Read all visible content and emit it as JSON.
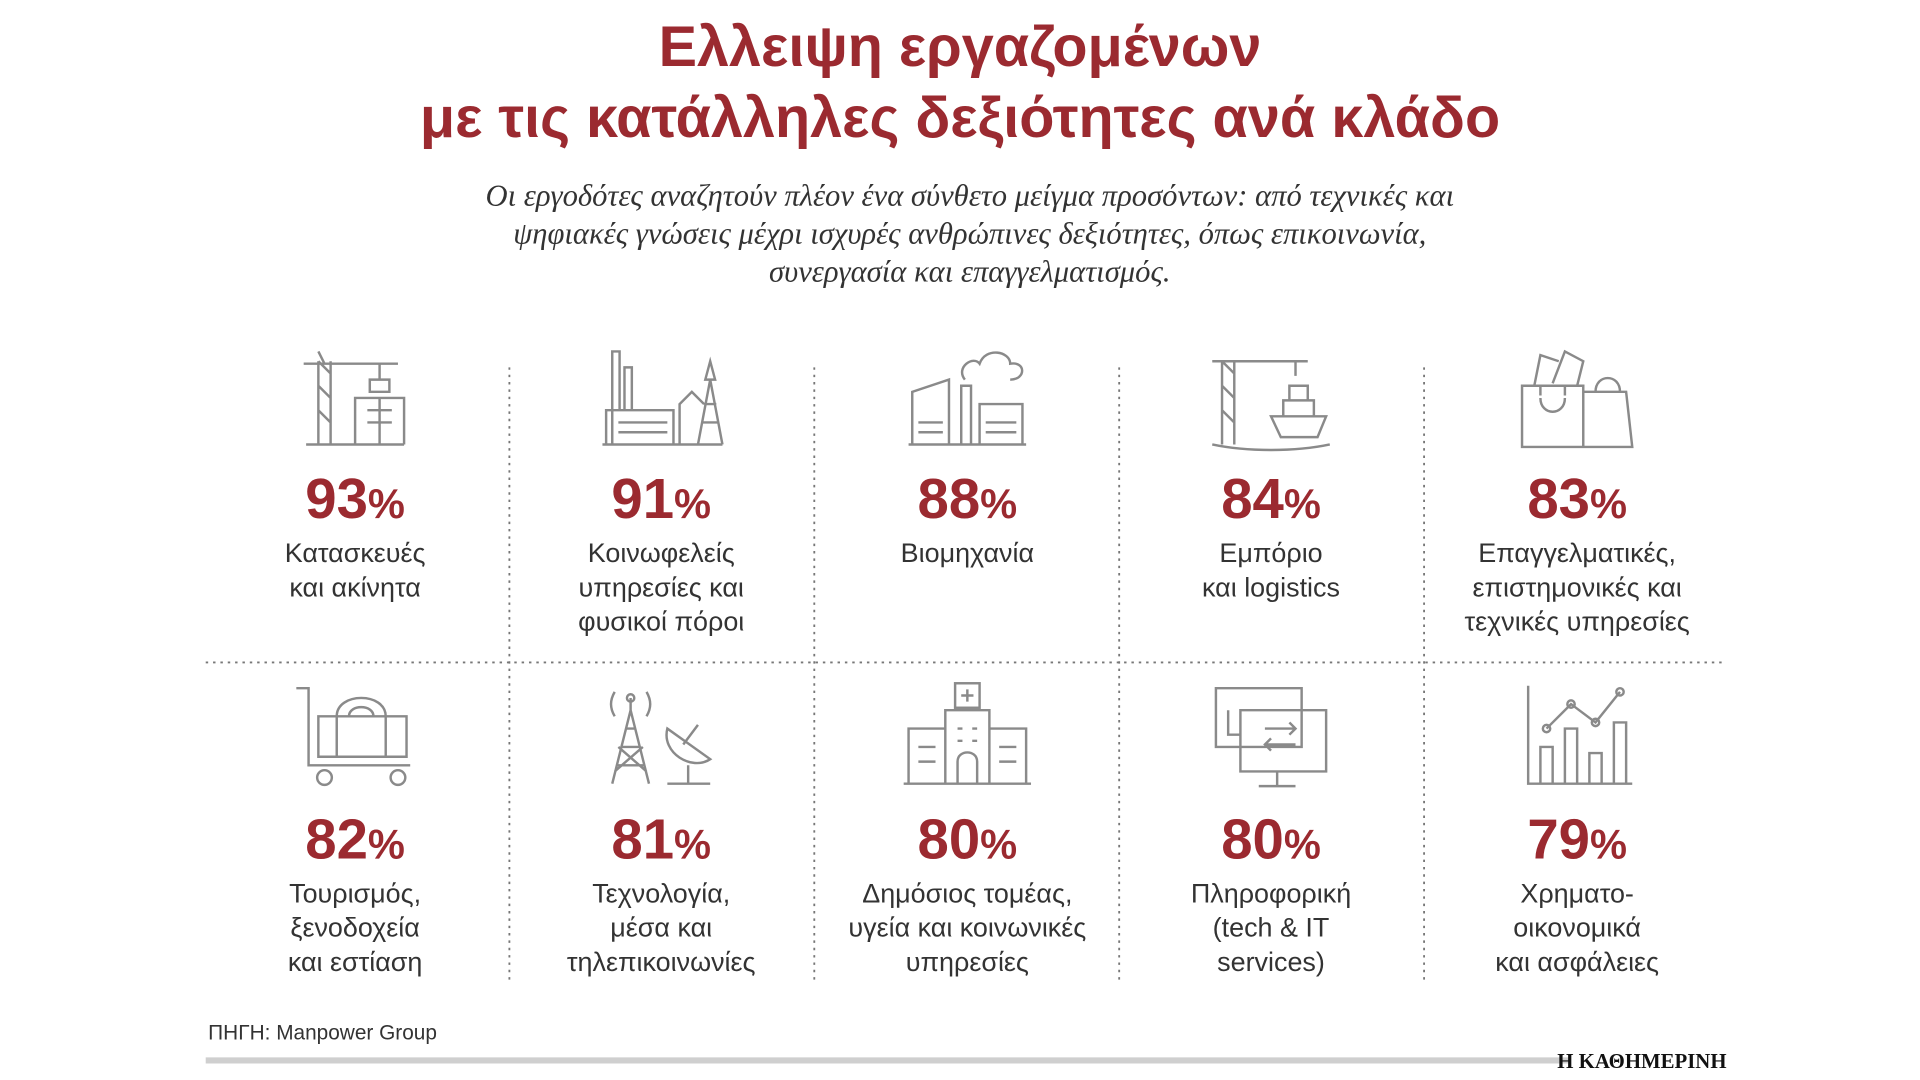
{
  "header": {
    "title": [
      "Ελλειψη εργαζομένων",
      "με τις κατάλληλες δεξιότητες ανά κλάδο"
    ],
    "subtitle": [
      "Οι εργοδότες αναζητούν πλέον ένα σύνθετο μείγμα προσόντων: από τεχνικές και",
      "ψηφιακές γνώσεις μέχρι ισχυρές ανθρώπινες δεξιότητες, όπως επικοινωνία,",
      "συνεργασία και επαγγελματισμός."
    ]
  },
  "items": [
    {
      "value": "93",
      "unit": "%",
      "label": [
        "Κατασκευές",
        "και ακίνητα"
      ]
    },
    {
      "value": "91",
      "unit": "%",
      "label": [
        "Κοινωφελείς",
        "υπηρεσίες και",
        "φυσικοί πόροι"
      ]
    },
    {
      "value": "88",
      "unit": "%",
      "label": [
        "Βιομηχανία"
      ]
    },
    {
      "value": "84",
      "unit": "%",
      "label": [
        "Εμπόριο",
        "και logistics"
      ]
    },
    {
      "value": "83",
      "unit": "%",
      "label": [
        "Επαγγελματικές,",
        "επιστημονικές και",
        "τεχνικές υπηρεσίες"
      ]
    },
    {
      "value": "82",
      "unit": "%",
      "label": [
        "Τουρισμός,",
        "ξενοδοχεία",
        "και εστίαση"
      ]
    },
    {
      "value": "81",
      "unit": "%",
      "label": [
        "Τεχνολογία,",
        "μέσα και",
        "τηλεπικοινωνίες"
      ]
    },
    {
      "value": "80",
      "unit": "%",
      "label": [
        "Δημόσιος τομέας,",
        "υγεία και κοινωνικές",
        "υπηρεσίες"
      ]
    },
    {
      "value": "80",
      "unit": "%",
      "label": [
        "Πληροφορική",
        "(tech & IT",
        "services)"
      ]
    },
    {
      "value": "79",
      "unit": "%",
      "label": [
        "Χρηματο-",
        "οικονομικά",
        "και ασφάλειες"
      ]
    }
  ],
  "footer": {
    "source": "ΠΗΓΗ: Manpower Group",
    "brand": "Η ΚΑΘΗΜΕΡΙΝΗ"
  }
}
